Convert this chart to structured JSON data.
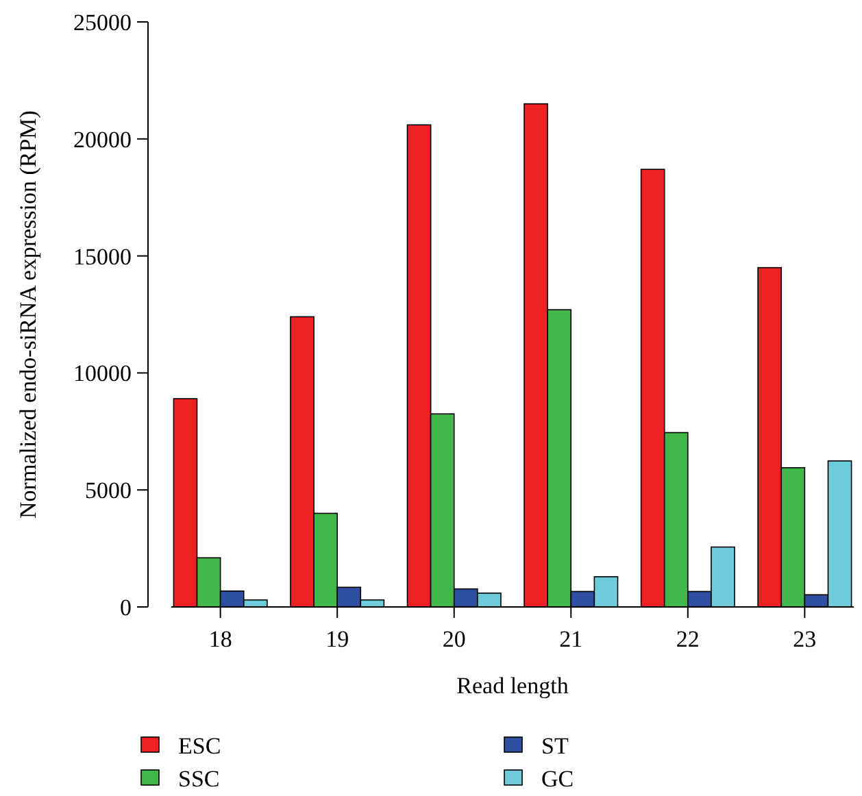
{
  "chart_data": {
    "type": "bar",
    "xlabel": "Read length",
    "ylabel": "Normalized endo-siRNA expression (RPM)",
    "categories": [
      "18",
      "19",
      "20",
      "21",
      "22",
      "23"
    ],
    "series": [
      {
        "name": "ESC",
        "color": "#ed2024",
        "values": [
          8900,
          12400,
          20600,
          21500,
          18700,
          14500
        ]
      },
      {
        "name": "SSC",
        "color": "#41b649",
        "values": [
          2100,
          4000,
          8250,
          12700,
          7450,
          5950
        ]
      },
      {
        "name": "ST",
        "color": "#2e4f9f",
        "values": [
          680,
          840,
          770,
          660,
          660,
          520
        ]
      },
      {
        "name": "GC",
        "color": "#6ecbd9",
        "values": [
          300,
          300,
          590,
          1290,
          2560,
          6240
        ]
      }
    ],
    "ylim": [
      0,
      25000
    ],
    "yticks": [
      0,
      5000,
      10000,
      15000,
      20000,
      25000
    ],
    "grid": false,
    "legend": "bottom"
  }
}
